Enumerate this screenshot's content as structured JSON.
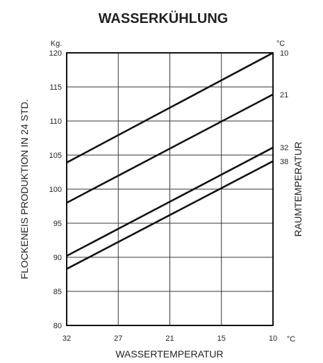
{
  "chart_data": {
    "type": "line",
    "title": "WASSERKÜHLUNG",
    "xlabel": "WASSERTEMPERATUR",
    "ylabel": "FLOCKENEIS PRODUKTION IN 24 STD.",
    "right_label": "RAUMTEMPERATUR",
    "y_unit": "Kg.",
    "x_unit": "°C",
    "right_unit": "°C",
    "x_ticks": [
      "32",
      "27",
      "21",
      "15",
      "10"
    ],
    "y_ticks": [
      "120",
      "115",
      "110",
      "105",
      "100",
      "95",
      "90",
      "85",
      "80"
    ],
    "ylim": [
      80,
      120
    ],
    "grid": true,
    "series": [
      {
        "name": "10",
        "x": [
          32,
          10
        ],
        "y": [
          103.9,
          120
        ]
      },
      {
        "name": "21",
        "x": [
          32,
          10
        ],
        "y": [
          98.0,
          113.9
        ]
      },
      {
        "name": "32",
        "x": [
          32,
          10
        ],
        "y": [
          90.2,
          106.1
        ]
      },
      {
        "name": "38",
        "x": [
          32,
          10
        ],
        "y": [
          88.3,
          104.1
        ]
      }
    ]
  }
}
